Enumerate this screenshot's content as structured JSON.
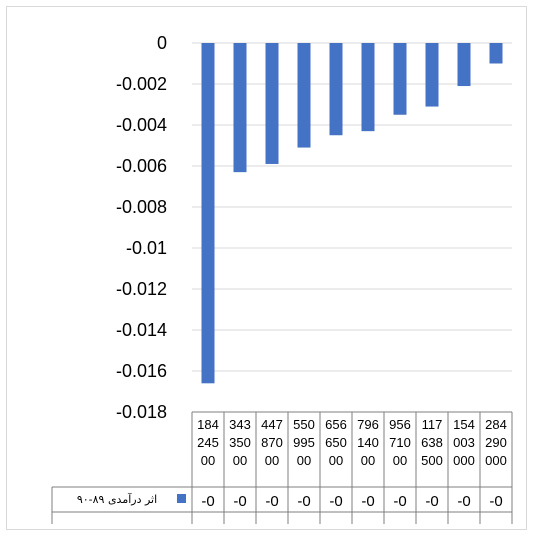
{
  "chart_data": {
    "type": "bar",
    "title": "",
    "xlabel": "",
    "ylabel": "",
    "ylim": [
      -0.018,
      0
    ],
    "yticks": [
      "0",
      "-0.002",
      "-0.004",
      "-0.006",
      "-0.008",
      "-0.01",
      "-0.012",
      "-0.014",
      "-0.016",
      "-0.018"
    ],
    "ytick_values": [
      0,
      -0.002,
      -0.004,
      -0.006,
      -0.008,
      -0.01,
      -0.012,
      -0.014,
      -0.016,
      -0.018
    ],
    "grid": true,
    "legend": "bottom-left (data table)",
    "data_table": true,
    "categories": [
      [
        "184",
        "245",
        "00"
      ],
      [
        "343",
        "350",
        "00"
      ],
      [
        "447",
        "870",
        "00"
      ],
      [
        "550",
        "995",
        "00"
      ],
      [
        "656",
        "650",
        "00"
      ],
      [
        "796",
        "140",
        "00"
      ],
      [
        "956",
        "710",
        "00"
      ],
      [
        "117",
        "638",
        "500"
      ],
      [
        "154",
        "003",
        "000"
      ],
      [
        "284",
        "290",
        "000"
      ]
    ],
    "series": [
      {
        "name": "اثر درآمدی ۸۹-۹۰",
        "color": "#4472c4",
        "values": [
          -0.0166,
          -0.0063,
          -0.0059,
          -0.0051,
          -0.0045,
          -0.0043,
          -0.0035,
          -0.0031,
          -0.0021,
          -0.001
        ],
        "table_labels": [
          "-0",
          "-0",
          "-0",
          "-0",
          "-0",
          "-0",
          "-0",
          "-0",
          "-0",
          "-0"
        ]
      }
    ]
  }
}
